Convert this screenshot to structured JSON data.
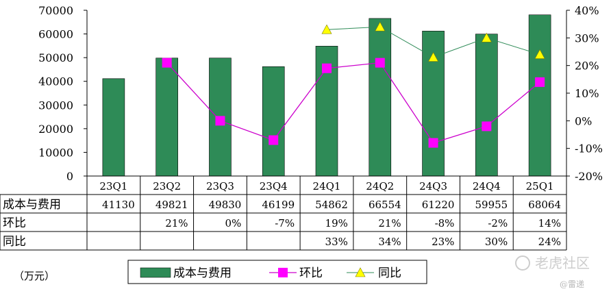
{
  "chart_data": {
    "type": "bar",
    "categories": [
      "23Q1",
      "23Q2",
      "23Q3",
      "23Q4",
      "24Q1",
      "24Q2",
      "24Q3",
      "24Q4",
      "25Q1"
    ],
    "series": [
      {
        "name": "成本与费用",
        "kind": "bar",
        "axis": "left",
        "color": "#2e8b57",
        "values": [
          41130,
          49821,
          49830,
          46199,
          54862,
          66554,
          61220,
          59955,
          68064
        ]
      },
      {
        "name": "环比",
        "kind": "line",
        "axis": "right",
        "color": "#cc00cc",
        "marker": "square",
        "marker_color": "#ff00ff",
        "values": [
          null,
          21,
          0,
          -7,
          19,
          21,
          -8,
          -2,
          14
        ]
      },
      {
        "name": "同比",
        "kind": "line",
        "axis": "right",
        "color": "#2e8b57",
        "marker": "triangle",
        "marker_color": "#ffff00",
        "values": [
          null,
          null,
          null,
          null,
          33,
          34,
          23,
          30,
          24
        ]
      }
    ],
    "y_left": {
      "min": 0,
      "max": 70000,
      "ticks": [
        "0",
        "10000",
        "20000",
        "30000",
        "40000",
        "50000",
        "60000",
        "70000"
      ]
    },
    "y_right": {
      "min": -20,
      "max": 40,
      "ticks": [
        "-20%",
        "-10%",
        "0%",
        "10%",
        "20%",
        "30%",
        "40%"
      ]
    },
    "table": {
      "rows": [
        {
          "label": "成本与费用",
          "cells": [
            "41130",
            "49821",
            "49830",
            "46199",
            "54862",
            "66554",
            "61220",
            "59955",
            "68064"
          ]
        },
        {
          "label": "环比",
          "cells": [
            "",
            "21%",
            "0%",
            "-7%",
            "19%",
            "21%",
            "-8%",
            "-2%",
            "14%"
          ]
        },
        {
          "label": "同比",
          "cells": [
            "",
            "",
            "",
            "",
            "33%",
            "34%",
            "23%",
            "30%",
            "24%"
          ]
        }
      ]
    },
    "legend": [
      "成本与费用",
      "环比",
      "同比"
    ],
    "unit_label": "（万元）",
    "grid": false
  },
  "watermark": {
    "text": "老虎社区",
    "sub": "@雷递"
  }
}
